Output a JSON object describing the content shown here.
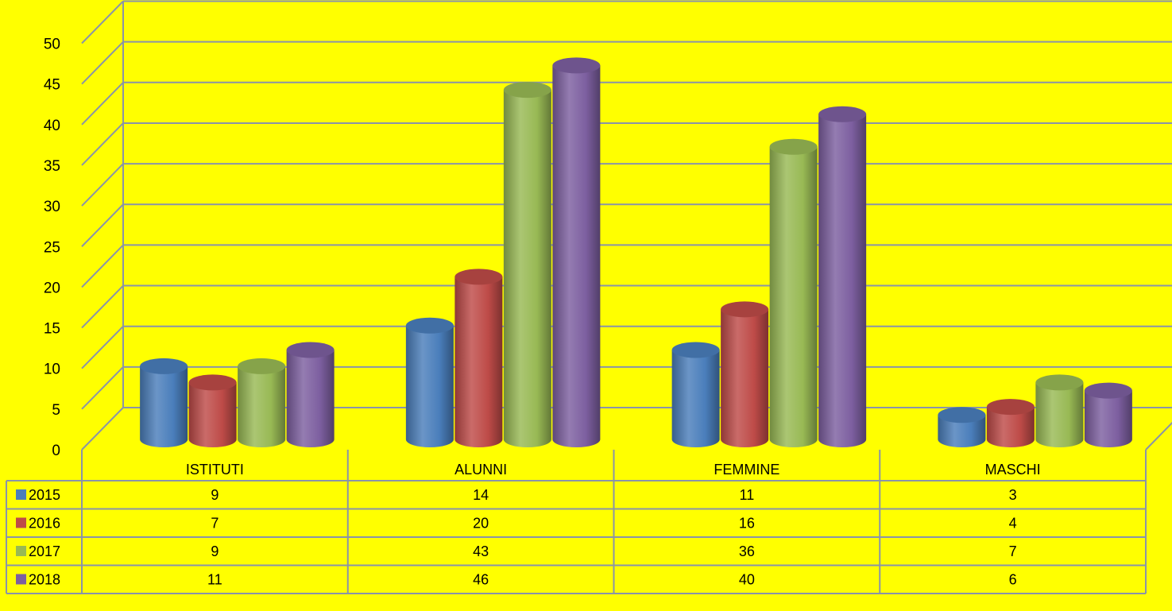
{
  "chart_data": {
    "type": "bar",
    "style": "3d-cylinder",
    "background": "#ffff00",
    "grid": true,
    "legend": "data-table-left",
    "ylim": [
      0,
      50
    ],
    "yticks": [
      0,
      5,
      10,
      15,
      20,
      25,
      30,
      35,
      40,
      45,
      50
    ],
    "categories": [
      "ISTITUTI",
      "ALUNNI",
      "FEMMINE",
      "MASCHI"
    ],
    "series": [
      {
        "name": "2015",
        "color": "#4a7ebb",
        "values": [
          9,
          14,
          11,
          3
        ]
      },
      {
        "name": "2016",
        "color": "#be4b48",
        "values": [
          7,
          20,
          16,
          4
        ]
      },
      {
        "name": "2017",
        "color": "#98b954",
        "values": [
          9,
          43,
          36,
          7
        ]
      },
      {
        "name": "2018",
        "color": "#7d5fa0",
        "values": [
          11,
          46,
          40,
          6
        ]
      }
    ]
  }
}
